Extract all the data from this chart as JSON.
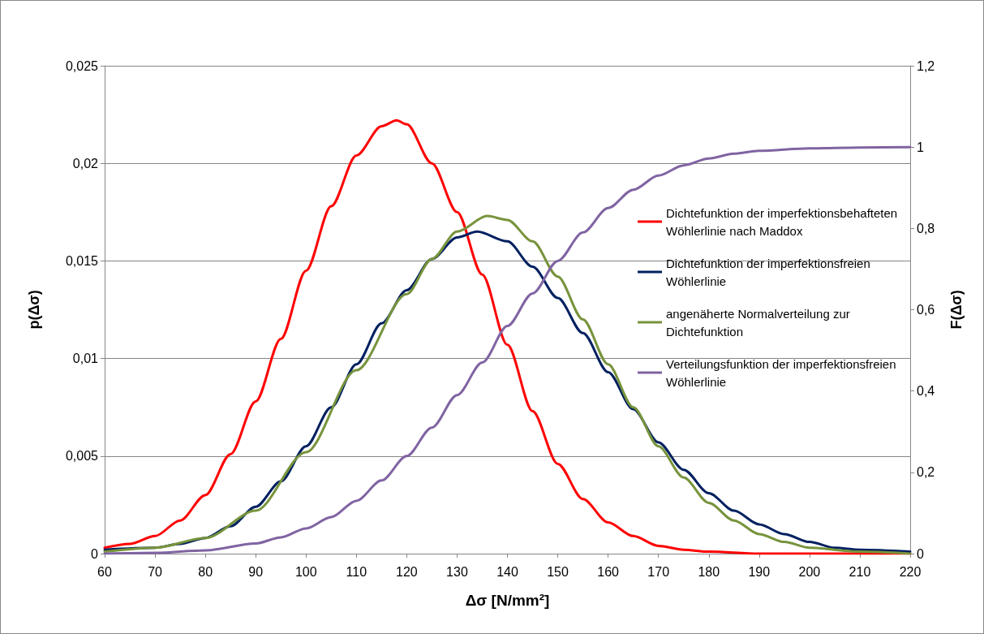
{
  "chart_data": {
    "type": "line",
    "xlabel": "Δσ [N/mm²]",
    "ylabel": "p(Δσ)",
    "y2label": "F(Δσ)",
    "xlim": [
      60,
      220
    ],
    "xticks": [
      60,
      70,
      80,
      90,
      100,
      110,
      120,
      130,
      140,
      150,
      160,
      170,
      180,
      190,
      200,
      210,
      220
    ],
    "ylim": [
      0,
      0.025
    ],
    "yticks": [
      {
        "value": 0,
        "label": "0"
      },
      {
        "value": 0.005,
        "label": "0,005"
      },
      {
        "value": 0.01,
        "label": "0,01"
      },
      {
        "value": 0.015,
        "label": "0,015"
      },
      {
        "value": 0.02,
        "label": "0,02"
      },
      {
        "value": 0.025,
        "label": "0,025"
      }
    ],
    "y2lim": [
      0,
      1.2
    ],
    "y2ticks": [
      {
        "value": 0,
        "label": "0"
      },
      {
        "value": 0.2,
        "label": "0,2"
      },
      {
        "value": 0.4,
        "label": "0,4"
      },
      {
        "value": 0.6,
        "label": "0,6"
      },
      {
        "value": 0.8,
        "label": "0,8"
      },
      {
        "value": 1,
        "label": "1"
      },
      {
        "value": 1.2,
        "label": "1,2"
      }
    ],
    "grid": "y",
    "legend": "right",
    "marker": "none",
    "line_style": "solid",
    "series": [
      {
        "name": "Dichtefunktion der imperfektionsbehafteten Wöhlerlinie nach Maddox",
        "color": "#ff0000",
        "x": [
          60,
          65,
          70,
          75,
          80,
          85,
          90,
          95,
          100,
          105,
          110,
          115,
          118,
          120,
          125,
          130,
          135,
          140,
          145,
          150,
          155,
          160,
          165,
          170,
          175,
          180,
          190,
          200,
          220
        ],
        "values": [
          0.0003,
          0.0005,
          0.0009,
          0.0017,
          0.003,
          0.0051,
          0.0078,
          0.011,
          0.0145,
          0.0178,
          0.0204,
          0.0219,
          0.0222,
          0.022,
          0.02,
          0.0175,
          0.0143,
          0.0107,
          0.0073,
          0.0046,
          0.0028,
          0.0016,
          0.0009,
          0.0004,
          0.0002,
          0.0001,
          0,
          0,
          0
        ]
      },
      {
        "name": "Dichtefunktion der imperfektionsfreien Wöhlerlinie",
        "color": "#002060",
        "x": [
          60,
          70,
          75,
          80,
          85,
          90,
          95,
          100,
          105,
          110,
          115,
          120,
          125,
          130,
          134,
          140,
          145,
          150,
          155,
          160,
          165,
          170,
          175,
          180,
          185,
          190,
          195,
          200,
          205,
          210,
          220
        ],
        "values": [
          0.0002,
          0.0003,
          0.0005,
          0.0008,
          0.0014,
          0.0024,
          0.0037,
          0.0055,
          0.0075,
          0.0097,
          0.0118,
          0.0135,
          0.0151,
          0.0162,
          0.0165,
          0.016,
          0.0147,
          0.0131,
          0.0113,
          0.0093,
          0.0074,
          0.0057,
          0.0043,
          0.0031,
          0.0022,
          0.0015,
          0.001,
          0.0006,
          0.0003,
          0.0002,
          0.0001
        ]
      },
      {
        "name": "angenäherte Normalverteilung zur Dichtefunktion",
        "color": "#77933c",
        "x": [
          60,
          70,
          80,
          90,
          100,
          110,
          120,
          125,
          130,
          136,
          140,
          145,
          150,
          155,
          160,
          165,
          170,
          175,
          180,
          185,
          190,
          195,
          200,
          210,
          220
        ],
        "values": [
          0.0001,
          0.0003,
          0.0008,
          0.0022,
          0.0052,
          0.0094,
          0.0133,
          0.0151,
          0.0165,
          0.0173,
          0.0171,
          0.016,
          0.0142,
          0.012,
          0.0097,
          0.0075,
          0.0055,
          0.0039,
          0.0026,
          0.0017,
          0.001,
          0.0006,
          0.0003,
          0.0001,
          0
        ]
      },
      {
        "name": "Verteilungsfunktion der imperfektionsfreien Wöhlerlinie",
        "color": "#8064a2",
        "axis": "y2",
        "x": [
          60,
          70,
          80,
          90,
          95,
          100,
          105,
          110,
          115,
          120,
          125,
          130,
          135,
          140,
          145,
          150,
          155,
          160,
          165,
          170,
          175,
          180,
          185,
          190,
          200,
          210,
          220
        ],
        "values": [
          0,
          0.002,
          0.008,
          0.025,
          0.04,
          0.062,
          0.09,
          0.13,
          0.18,
          0.24,
          0.31,
          0.39,
          0.47,
          0.56,
          0.64,
          0.72,
          0.79,
          0.85,
          0.895,
          0.93,
          0.955,
          0.972,
          0.984,
          0.991,
          0.997,
          0.999,
          1
        ]
      }
    ]
  }
}
